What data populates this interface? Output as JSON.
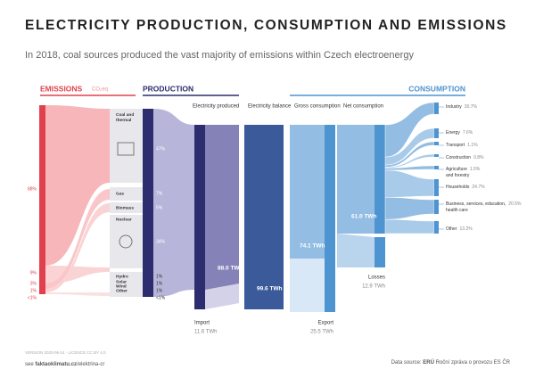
{
  "header": {
    "title": "ELECTRICITY PRODUCTION, CONSUMPTION AND EMISSIONS",
    "subtitle": "In 2018, coal sources produced the vast majority of emissions within Czech electroenergy"
  },
  "sections": {
    "emissions": "EMISSIONS",
    "emissions_unit": "CO₂eq",
    "production": "PRODUCTION",
    "consumption": "CONSUMPTION"
  },
  "emissions": [
    "88%",
    "9%",
    "3%",
    "1%",
    "<1%"
  ],
  "production": [
    {
      "label": "Coal and thermal",
      "share": "47%"
    },
    {
      "label": "Gas",
      "share": "7%"
    },
    {
      "label": "Biomass",
      "share": "5%"
    },
    {
      "label": "Nuclear",
      "share": "34%"
    },
    {
      "label": "Hydro",
      "share": "1%"
    },
    {
      "label": "Solar",
      "share": "1%"
    },
    {
      "label": "Wind",
      "share": "1%"
    },
    {
      "label": "Other",
      "share": "<1%"
    }
  ],
  "stages": {
    "produced": {
      "label": "Electricity produced",
      "value": "88.0 TWh"
    },
    "import": {
      "label": "Import",
      "value": "11.6 TWh"
    },
    "balance": {
      "label": "Electricity balance",
      "value": "99.6 TWh"
    },
    "gross": {
      "label": "Gross consumption",
      "value": "74.1 TWh"
    },
    "export": {
      "label": "Export",
      "value": "25.5 TWh"
    },
    "net": {
      "label": "Net consumption",
      "value": "61.0 TWh"
    },
    "losses": {
      "label": "Losses",
      "value": "12.9 TWh"
    }
  },
  "consumption": [
    {
      "label": "Industry",
      "share": "30.7%"
    },
    {
      "label": "Energy",
      "share": "7.6%"
    },
    {
      "label": "Transport",
      "share": "1.1%"
    },
    {
      "label": "Construction",
      "share": "0.8%"
    },
    {
      "label": "Agriculture and forestry",
      "share": "1.5%"
    },
    {
      "label": "Households",
      "share": "24.7%"
    },
    {
      "label": "Business, services, education, health care",
      "share": "20.5%"
    },
    {
      "label": "Other",
      "share": "13.2%"
    }
  ],
  "footer": {
    "version": "VERSION 2020-06-14 · LICENCE CC BY 4.0",
    "see": "see",
    "link": "faktaoklimatu.cz",
    "path": "/elektrina-cr",
    "source_prefix": "Data source:",
    "source_org": "ERÚ",
    "source_doc": "Roční zpráva o provozu ES ČR"
  }
}
